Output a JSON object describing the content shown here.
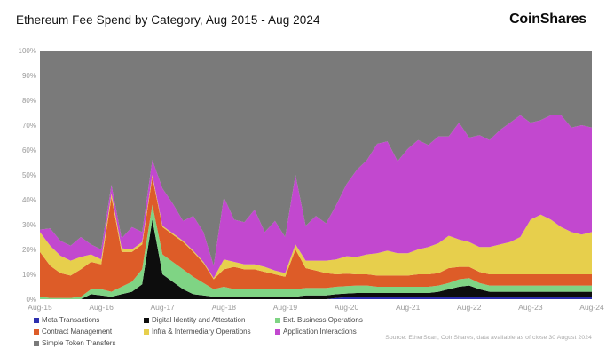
{
  "header": {
    "title": "Ethereum Fee Spend by Category, Aug 2015 - Aug 2024",
    "brand": "CoinShares"
  },
  "footer": {
    "source": "Source: EtherScan, CoinShares, data available as of close 30 August 2024"
  },
  "chart_data": {
    "type": "area",
    "stacked": true,
    "percent_stacked": true,
    "title": "Ethereum Fee Spend by Category, Aug 2015 - Aug 2024",
    "xlabel": "",
    "ylabel": "",
    "ylim": [
      0,
      100
    ],
    "y_ticks": [
      "0%",
      "10%",
      "20%",
      "30%",
      "40%",
      "50%",
      "60%",
      "70%",
      "80%",
      "90%",
      "100%"
    ],
    "x_axis_ticks": [
      "Aug-15",
      "Aug-16",
      "Aug-17",
      "Aug-18",
      "Aug-19",
      "Aug-20",
      "Aug-21",
      "Aug-22",
      "Aug-23",
      "Aug-24"
    ],
    "grid": false,
    "legend_position": "bottom",
    "x_labels": [
      "Aug-15",
      "Oct-15",
      "Dec-15",
      "Feb-16",
      "Apr-16",
      "Jun-16",
      "Aug-16",
      "Oct-16",
      "Dec-16",
      "Feb-17",
      "Apr-17",
      "Jun-17",
      "Aug-17",
      "Oct-17",
      "Dec-17",
      "Feb-18",
      "Apr-18",
      "Jun-18",
      "Aug-18",
      "Oct-18",
      "Dec-18",
      "Feb-19",
      "Apr-19",
      "Jun-19",
      "Aug-19",
      "Oct-19",
      "Dec-19",
      "Feb-20",
      "Apr-20",
      "Jun-20",
      "Aug-20",
      "Oct-20",
      "Dec-20",
      "Feb-21",
      "Apr-21",
      "Jun-21",
      "Aug-21",
      "Oct-21",
      "Dec-21",
      "Feb-22",
      "Apr-22",
      "Jun-22",
      "Aug-22",
      "Oct-22",
      "Dec-22",
      "Feb-23",
      "Apr-23",
      "Jun-23",
      "Aug-23",
      "Oct-23",
      "Dec-23",
      "Feb-24",
      "Apr-24",
      "Jun-24",
      "Aug-24"
    ],
    "series": [
      {
        "key": "meta_transactions",
        "name": "Meta Transactions",
        "color": "#2d2fae",
        "values": [
          0,
          0,
          0,
          0,
          0,
          0,
          0,
          0,
          0,
          0,
          0,
          0,
          0,
          0,
          0,
          0,
          0,
          0,
          0,
          0,
          0,
          0,
          0,
          0,
          0,
          0,
          0,
          0,
          0,
          0.5,
          0.8,
          1,
          1,
          1,
          1,
          1,
          1,
          1,
          1,
          1,
          1,
          1,
          1,
          1,
          1,
          1,
          1,
          1,
          1,
          1,
          1,
          1,
          1,
          1,
          1
        ]
      },
      {
        "key": "digital_identity",
        "name": "Digital Identity and Attestation",
        "color": "#0d0d0d",
        "values": [
          0,
          0,
          0,
          0,
          0,
          2,
          1.5,
          1,
          2,
          3,
          6,
          32,
          10,
          7,
          4,
          2,
          1.5,
          1,
          1,
          1,
          1,
          1,
          1,
          1,
          1,
          1,
          1.5,
          1.5,
          1.5,
          1.5,
          1.5,
          1.5,
          1.5,
          1.5,
          1.5,
          1.5,
          1.5,
          1.5,
          1.5,
          2,
          3,
          4,
          4.5,
          3,
          2,
          2,
          2,
          2,
          2,
          2,
          2,
          2,
          2,
          2,
          2
        ]
      },
      {
        "key": "ext_business",
        "name": "Ext. Business Operations",
        "color": "#7fd484",
        "values": [
          1,
          0.5,
          0.5,
          0.5,
          1,
          2,
          2.5,
          2,
          3,
          4,
          6,
          6,
          8,
          8,
          8,
          7,
          5,
          3,
          4,
          3,
          3,
          3,
          3,
          3,
          3,
          3,
          3,
          3,
          3,
          3,
          3,
          3,
          3,
          2.5,
          2.5,
          2.5,
          2.5,
          2.5,
          2.5,
          2.5,
          2.5,
          3,
          3,
          2.5,
          2.5,
          2.5,
          2.5,
          2.5,
          2.5,
          2.5,
          2.5,
          2.5,
          2.5,
          2.5,
          2.5
        ]
      },
      {
        "key": "contract_management",
        "name": "Contract Management",
        "color": "#dd5c28",
        "values": [
          18,
          13,
          10,
          9,
          11,
          11,
          10,
          38,
          14,
          12,
          10,
          11,
          11,
          11,
          11,
          10,
          8,
          4,
          7,
          9,
          8,
          8,
          7,
          6,
          5,
          16,
          8,
          7,
          6,
          5,
          5,
          4.5,
          4.5,
          4.5,
          4.5,
          4.5,
          4.5,
          5,
          5,
          5,
          6,
          5,
          4.5,
          4.5,
          4.5,
          4.5,
          4.5,
          4.5,
          4.5,
          4.5,
          4.5,
          4.5,
          4.5,
          4.5,
          4.5
        ]
      },
      {
        "key": "infra_intermediary",
        "name": "Infra & Intermediary Operations",
        "color": "#e7cf4c",
        "values": [
          8,
          8,
          7,
          6,
          5,
          3,
          2,
          1.5,
          1.5,
          1,
          1,
          1,
          0.5,
          0.5,
          0.5,
          0.5,
          0.5,
          0.5,
          4,
          2,
          2,
          2,
          2,
          1.5,
          1.5,
          2,
          3,
          4,
          5,
          6,
          7,
          7,
          8,
          9,
          10,
          9,
          9,
          10,
          11,
          12,
          13,
          11,
          10,
          10,
          11,
          12,
          13,
          15,
          22,
          24,
          22,
          19,
          17,
          16,
          17
        ]
      },
      {
        "key": "application_interactions",
        "name": "Application Interactions",
        "color": "#c248cf",
        "values": [
          1,
          7,
          6,
          6,
          8,
          4,
          4,
          3.5,
          4,
          9,
          4,
          6,
          15,
          12,
          8,
          14,
          12,
          5,
          25,
          17,
          17,
          22,
          14,
          20,
          14.5,
          28,
          14,
          18,
          15,
          22,
          29,
          35,
          38,
          44,
          44,
          37,
          42,
          44,
          41,
          43,
          40,
          47,
          42,
          45,
          43,
          46,
          48,
          49,
          39,
          38,
          42,
          45,
          42,
          44,
          42
        ]
      },
      {
        "key": "simple_token_transfers",
        "name": "Simple Token Transfers",
        "color": "#7a7a7a",
        "values": [
          72,
          71.5,
          76.5,
          78.5,
          75,
          78,
          80,
          54,
          75.5,
          71,
          73,
          44,
          55.5,
          61.5,
          68.5,
          66.5,
          73,
          86.5,
          59,
          68,
          69,
          64,
          73,
          68.5,
          75,
          50,
          70.5,
          66.5,
          69.5,
          62,
          53.7,
          48,
          44,
          37.5,
          36.5,
          44.5,
          39.5,
          36,
          38,
          34.5,
          34.5,
          29,
          35,
          34,
          36,
          32,
          29,
          26,
          29,
          28,
          26,
          26,
          31,
          30,
          31
        ]
      }
    ],
    "legend_columns": [
      [
        "meta_transactions",
        "contract_management",
        "simple_token_transfers"
      ],
      [
        "digital_identity",
        "infra_intermediary"
      ],
      [
        "ext_business",
        "application_interactions"
      ]
    ]
  }
}
